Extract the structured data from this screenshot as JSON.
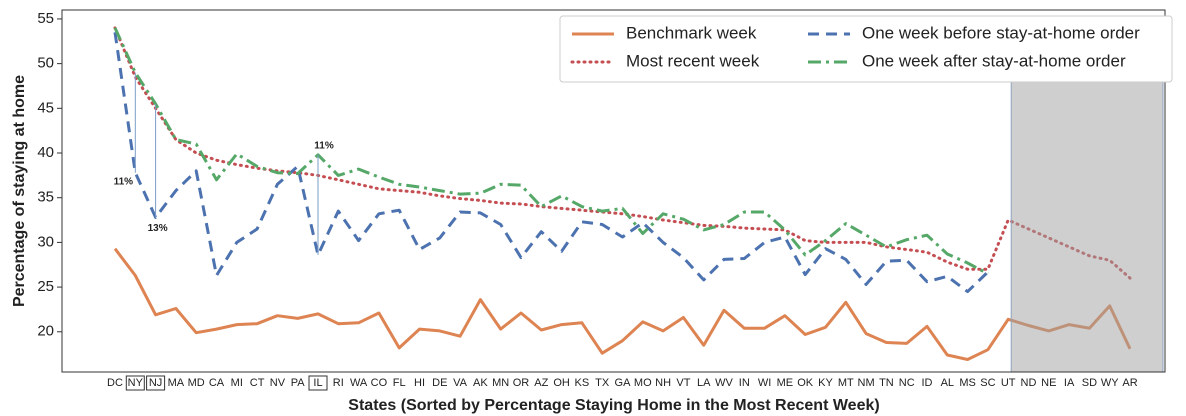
{
  "chart_data": {
    "type": "line",
    "x_label": "States (Sorted by Percentage Staying Home in the Most Recent Week)",
    "y_label": "Percentage of staying at home",
    "categories": [
      "DC",
      "NY",
      "NJ",
      "MA",
      "MD",
      "CA",
      "MI",
      "CT",
      "NV",
      "PA",
      "IL",
      "RI",
      "WA",
      "CO",
      "FL",
      "HI",
      "DE",
      "VA",
      "AK",
      "MN",
      "OR",
      "AZ",
      "OH",
      "KS",
      "TX",
      "GA",
      "MO",
      "NH",
      "VT",
      "LA",
      "WV",
      "IN",
      "WI",
      "ME",
      "OK",
      "KY",
      "MT",
      "NM",
      "TN",
      "NC",
      "ID",
      "AL",
      "MS",
      "SC",
      "UT",
      "ND",
      "NE",
      "IA",
      "SD",
      "WY",
      "AR"
    ],
    "boxed_categories": [
      "NY",
      "NJ",
      "IL"
    ],
    "shaded_from": "UT",
    "ylim": [
      15.5,
      56
    ],
    "yticks": [
      20,
      25,
      30,
      35,
      40,
      45,
      50,
      55
    ],
    "legend": "upper right",
    "series": [
      {
        "name": "Benchmark week",
        "color": "#dd8452",
        "dash": "solid",
        "values": [
          29.3,
          26.3,
          21.9,
          22.6,
          19.9,
          20.3,
          20.8,
          20.9,
          21.8,
          21.5,
          22.0,
          20.9,
          21.0,
          22.1,
          18.2,
          20.3,
          20.1,
          19.5,
          23.6,
          20.3,
          22.1,
          20.2,
          20.8,
          21.0,
          17.6,
          19.0,
          21.1,
          20.1,
          21.6,
          18.5,
          22.4,
          20.4,
          20.4,
          21.8,
          19.7,
          20.5,
          23.3,
          19.8,
          18.8,
          18.7,
          20.6,
          17.4,
          16.9,
          18.0,
          21.4,
          20.7,
          20.1,
          20.8,
          20.4,
          22.9,
          18.1
        ]
      },
      {
        "name": "Most recent week",
        "color": "#c44e52",
        "dash": "dotted",
        "values": [
          54.0,
          48.5,
          45.0,
          41.5,
          40.0,
          39.2,
          38.7,
          38.3,
          38.0,
          37.8,
          37.5,
          37.0,
          36.5,
          36.0,
          35.8,
          35.6,
          35.2,
          34.9,
          34.7,
          34.4,
          34.3,
          34.0,
          33.8,
          33.6,
          33.4,
          33.2,
          32.9,
          32.5,
          32.2,
          31.9,
          31.8,
          31.6,
          31.5,
          31.4,
          30.2,
          30.0,
          30.0,
          30.0,
          29.5,
          29.2,
          28.9,
          27.8,
          27.0,
          27.0,
          32.5,
          31.5,
          30.5,
          29.5,
          28.5,
          28.0,
          26.0
        ]
      },
      {
        "name": "One week before stay-at-home order",
        "color": "#4c72b0",
        "dash": "dashed",
        "values": [
          53.5,
          37.8,
          32.8,
          35.8,
          38.0,
          26.3,
          30.0,
          31.5,
          36.5,
          38.5,
          28.6,
          33.5,
          30.2,
          33.2,
          33.6,
          29.2,
          30.5,
          33.4,
          33.3,
          32.0,
          28.3,
          31.2,
          29.0,
          32.3,
          32.0,
          30.6,
          32.2,
          30.0,
          28.3,
          25.8,
          28.1,
          28.2,
          30.0,
          30.6,
          26.4,
          29.3,
          28.1,
          25.3,
          27.9,
          28.0,
          25.6,
          26.2,
          24.5,
          26.7,
          null,
          null,
          null,
          null,
          null,
          null,
          null
        ]
      },
      {
        "name": "One week after stay-at-home order",
        "color": "#55a868",
        "dash": "dashdot",
        "values": [
          54.0,
          49.0,
          45.5,
          41.5,
          41.0,
          37.0,
          39.9,
          38.5,
          37.8,
          37.7,
          39.8,
          37.5,
          38.2,
          37.3,
          36.5,
          36.2,
          35.8,
          35.4,
          35.5,
          36.5,
          36.4,
          34.0,
          35.2,
          34.0,
          33.5,
          33.8,
          31.0,
          33.2,
          32.6,
          31.4,
          32.0,
          33.4,
          33.4,
          31.4,
          28.6,
          30.2,
          32.1,
          30.8,
          29.5,
          30.3,
          30.8,
          28.7,
          27.7,
          26.5,
          null,
          null,
          null,
          null,
          null,
          null,
          null
        ]
      }
    ],
    "annotations": [
      {
        "text": "11%",
        "category": "NY"
      },
      {
        "text": "13%",
        "category": "NJ"
      },
      {
        "text": "11%",
        "category": "IL"
      }
    ]
  }
}
